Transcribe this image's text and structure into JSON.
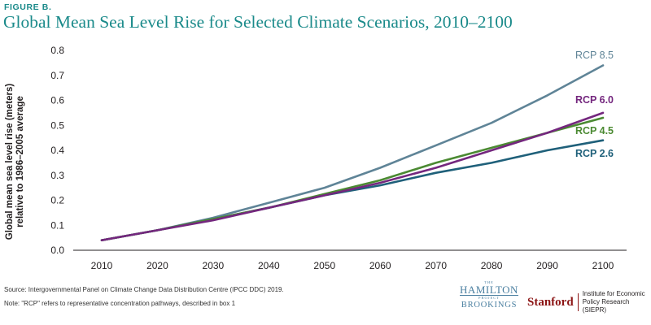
{
  "figure_label": "FIGURE B.",
  "title": "Global Mean Sea Level Rise for Selected Climate Scenarios, 2010–2100",
  "source": "Source: Intergovernmental Panel on Climate Change Data Distribution Centre (IPCC DDC) 2019.",
  "note": "Note: \"RCP\" refers to representative concentration pathways, described in box 1",
  "logos": {
    "hamilton_the": "THE",
    "hamilton_name": "HAMILTON",
    "hamilton_project": "PROJECT",
    "brookings": "BROOKINGS",
    "stanford": "Stanford",
    "stanford_institute": "Institute for Economic\nPolicy Research (SIEPR)"
  },
  "chart_data": {
    "type": "line",
    "title": "Global Mean Sea Level Rise for Selected Climate Scenarios, 2010–2100",
    "xlabel": "",
    "ylabel": "Global mean sea level rise (meters) relative to 1986–2005 average",
    "ylabel_lines": [
      "Global mean sea level rise (meters)",
      "relative to 1986–2005 average"
    ],
    "x": [
      2010,
      2020,
      2030,
      2040,
      2050,
      2060,
      2070,
      2080,
      2090,
      2100
    ],
    "xlim": [
      2010,
      2100
    ],
    "ylim": [
      0,
      0.8
    ],
    "yticks": [
      0.0,
      0.1,
      0.2,
      0.3,
      0.4,
      0.5,
      0.6,
      0.7,
      0.8
    ],
    "grid": false,
    "legend": "inline labels at line ends",
    "series": [
      {
        "name": "RCP 8.5",
        "color": "#5f8497",
        "values": [
          0.04,
          0.08,
          0.13,
          0.19,
          0.25,
          0.33,
          0.42,
          0.51,
          0.62,
          0.74
        ]
      },
      {
        "name": "RCP 6.0",
        "color": "#74277e",
        "values": [
          0.04,
          0.08,
          0.12,
          0.17,
          0.22,
          0.27,
          0.33,
          0.4,
          0.47,
          0.55
        ]
      },
      {
        "name": "RCP 4.5",
        "color": "#4b8a32",
        "values": [
          0.04,
          0.08,
          0.125,
          0.17,
          0.225,
          0.28,
          0.35,
          0.41,
          0.47,
          0.53
        ]
      },
      {
        "name": "RCP 2.6",
        "color": "#1f607a",
        "values": [
          0.04,
          0.08,
          0.125,
          0.17,
          0.22,
          0.26,
          0.31,
          0.35,
          0.4,
          0.44
        ]
      }
    ]
  }
}
